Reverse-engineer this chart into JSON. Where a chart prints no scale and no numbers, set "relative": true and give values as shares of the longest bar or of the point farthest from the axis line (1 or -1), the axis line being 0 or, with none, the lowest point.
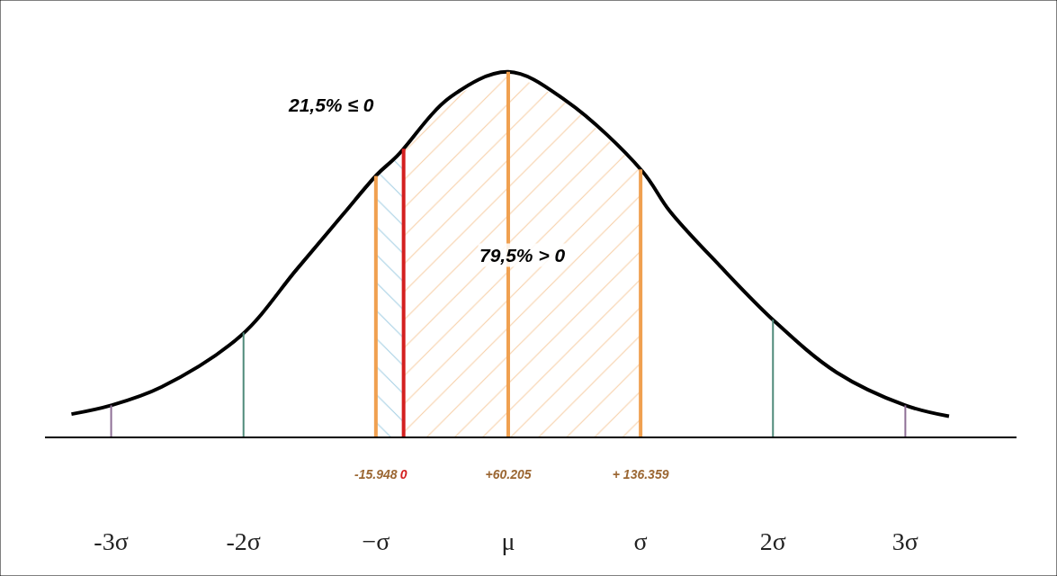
{
  "chart_data": {
    "type": "line",
    "relative": true,
    "x": [
      -3.3,
      -3.0,
      -2.62,
      -2.02,
      -1.6,
      -1.25,
      -0.99,
      -0.84,
      -0.44,
      0,
      0.44,
      1.01,
      1.22,
      1.6,
      2.01,
      2.48,
      3.0,
      3.33
    ],
    "series": [
      {
        "color": "#000000",
        "values": [
          0.066,
          0.09,
          0.14,
          0.28,
          0.46,
          0.61,
          0.72,
          0.77,
          0.93,
          1,
          0.92,
          0.73,
          0.62,
          0.47,
          0.32,
          0.18,
          0.09,
          0.06
        ]
      }
    ],
    "xlim": [
      -3.5,
      3.84
    ],
    "xticks": [
      {
        "value": -3,
        "label": "-3σ"
      },
      {
        "value": -2,
        "label": "-2σ"
      },
      {
        "value": -1,
        "label": "−σ"
      },
      {
        "value": 0,
        "label": "μ"
      },
      {
        "value": 1,
        "label": "σ"
      },
      {
        "value": 2,
        "label": "2σ"
      },
      {
        "value": 3,
        "label": "3σ"
      }
    ],
    "x2lim": [
      -206334,
      352636
    ],
    "x2ticks": [
      {
        "value": -15948,
        "label": "-15.948"
      },
      0,
      {
        "value": 60205,
        "label": "+60.205"
      },
      {
        "value": 136359,
        "label": "+ 136.359"
      }
    ],
    "ref_lines": [
      {
        "axis": "x",
        "value": -3,
        "color": "#8e6f96"
      },
      {
        "axis": "x",
        "value": 3,
        "color": "#8e6f96"
      },
      {
        "axis": "x",
        "value": -2,
        "color": "#4f8a7a"
      },
      {
        "axis": "x",
        "value": 2,
        "color": "#4f8a7a"
      },
      {
        "axis": "x2",
        "value": -15948,
        "color": "#f0a050"
      },
      {
        "axis": "x2",
        "value": 60205,
        "color": "#f0a050"
      },
      {
        "axis": "x2",
        "value": 136359,
        "color": "#f0a050"
      },
      {
        "axis": "x2",
        "value": 0,
        "color": "#d42020"
      }
    ],
    "bands": [
      {
        "axis": "x2",
        "from": -15948,
        "to": 0,
        "color": "#4aa0c8"
      },
      {
        "axis": "x2",
        "from": 0,
        "to": 136359,
        "color": "#f0a050"
      }
    ],
    "annotations": [
      "21,5% ≤ 0",
      "79,5% > 0"
    ],
    "marker": "none",
    "line_style": "solid"
  }
}
